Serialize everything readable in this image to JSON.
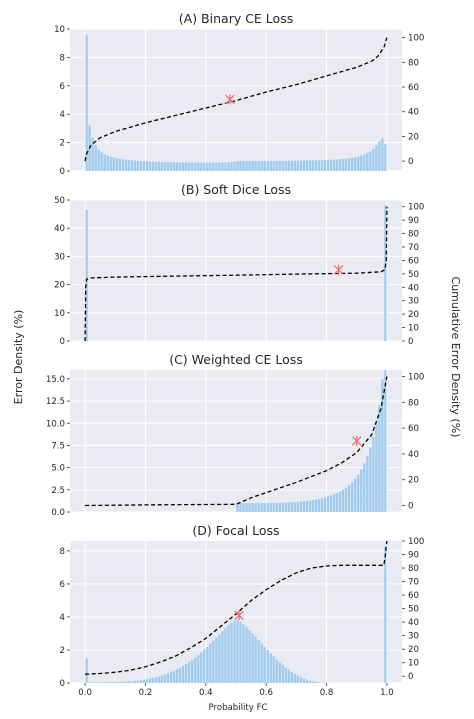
{
  "figure": {
    "ylabel_left": "Error Density (%)",
    "ylabel_right": "Cumulative Error Density (%)",
    "xlabel": "Probability FC",
    "x_ticks": [
      "0.0",
      "0.2",
      "0.4",
      "0.6",
      "0.8",
      "1.0"
    ]
  },
  "colors": {
    "bar": "#9fcbee",
    "line": "#000000",
    "marker": "#f06b6b",
    "plot_bg": "#eaeaf2",
    "grid": "#ffffff"
  },
  "chart_data": [
    {
      "type": "bar",
      "title": "(A) Binary CE Loss",
      "xlabel": "",
      "ylabel": "Error Density (%)",
      "xlim": [
        -0.05,
        1.05
      ],
      "ylim": [
        0,
        10
      ],
      "y_ticks": [
        0,
        2,
        4,
        6,
        8,
        10
      ],
      "y2lim": [
        -8,
        107
      ],
      "y2_ticks": [
        0,
        20,
        40,
        60,
        80,
        100
      ],
      "bins": 100,
      "series": [
        {
          "kind": "bar",
          "values": [
            9.6,
            3.2,
            2.35,
            1.8,
            1.5,
            1.3,
            1.18,
            1.08,
            1.0,
            0.95,
            0.9,
            0.86,
            0.83,
            0.8,
            0.78,
            0.76,
            0.74,
            0.72,
            0.7,
            0.69,
            0.68,
            0.67,
            0.66,
            0.65,
            0.64,
            0.63,
            0.63,
            0.62,
            0.62,
            0.61,
            0.61,
            0.6,
            0.6,
            0.6,
            0.6,
            0.59,
            0.59,
            0.59,
            0.59,
            0.59,
            0.59,
            0.59,
            0.59,
            0.6,
            0.6,
            0.6,
            0.6,
            0.61,
            0.62,
            0.65,
            0.7,
            0.72,
            0.71,
            0.71,
            0.71,
            0.71,
            0.71,
            0.71,
            0.71,
            0.71,
            0.71,
            0.71,
            0.71,
            0.72,
            0.72,
            0.72,
            0.72,
            0.72,
            0.73,
            0.73,
            0.73,
            0.73,
            0.74,
            0.74,
            0.74,
            0.75,
            0.75,
            0.76,
            0.76,
            0.77,
            0.78,
            0.79,
            0.8,
            0.81,
            0.83,
            0.85,
            0.87,
            0.9,
            0.93,
            0.97,
            1.02,
            1.08,
            1.15,
            1.25,
            1.38,
            1.55,
            1.8,
            2.1,
            2.3,
            1.9
          ]
        },
        {
          "kind": "cumulative",
          "x": [
            0.0,
            0.005,
            0.02,
            0.05,
            0.1,
            0.2,
            0.3,
            0.4,
            0.5,
            0.6,
            0.7,
            0.8,
            0.9,
            0.95,
            0.97,
            0.99,
            1.0
          ],
          "y": [
            0,
            6,
            13,
            19,
            24,
            31,
            37,
            43,
            49,
            56,
            62,
            69,
            76,
            81,
            85,
            92,
            100
          ]
        }
      ],
      "marker": {
        "x": 0.48,
        "y": 50
      }
    },
    {
      "type": "bar",
      "title": "(B) Soft Dice Loss",
      "xlabel": "",
      "ylabel": "Error Density (%)",
      "xlim": [
        -0.05,
        1.05
      ],
      "ylim": [
        0,
        50
      ],
      "y_ticks": [
        0,
        10,
        20,
        30,
        40,
        50
      ],
      "y2lim": [
        0,
        105
      ],
      "y2_ticks": [
        0,
        10,
        20,
        30,
        40,
        50,
        60,
        70,
        80,
        90,
        100
      ],
      "bins": 100,
      "series": [
        {
          "kind": "bar",
          "values": [
            46.5,
            0,
            0,
            0,
            0,
            0,
            0,
            0,
            0,
            0,
            0,
            0,
            0,
            0,
            0,
            0,
            0,
            0,
            0,
            0,
            0,
            0,
            0,
            0,
            0,
            0,
            0,
            0,
            0,
            0,
            0,
            0,
            0,
            0,
            0,
            0,
            0,
            0,
            0,
            0,
            0,
            0,
            0,
            0,
            0,
            0,
            0,
            0,
            0,
            0,
            0,
            0,
            0,
            0,
            0,
            0,
            0,
            0,
            0,
            0,
            0,
            0,
            0,
            0,
            0,
            0,
            0,
            0,
            0,
            0,
            0,
            0,
            0,
            0,
            0,
            0,
            0,
            0,
            0,
            0,
            0,
            0,
            0,
            0,
            0,
            0,
            0,
            0,
            0,
            0,
            0,
            0,
            0,
            0,
            0,
            0,
            0,
            0,
            0,
            48
          ]
        },
        {
          "kind": "cumulative",
          "x": [
            0.0,
            0.002,
            0.005,
            0.02,
            0.1,
            0.3,
            0.5,
            0.7,
            0.9,
            0.98,
            0.993,
            0.998,
            1.0
          ],
          "y": [
            0,
            40,
            46,
            47,
            47.6,
            48.3,
            49,
            49.8,
            50.5,
            51.5,
            53,
            60,
            100
          ]
        }
      ],
      "marker": {
        "x": 0.84,
        "y": 53
      }
    },
    {
      "type": "bar",
      "title": "(C) Weighted CE Loss",
      "xlabel": "",
      "ylabel": "Error Density (%)",
      "xlim": [
        -0.05,
        1.05
      ],
      "ylim": [
        0,
        16
      ],
      "y_ticks": [
        0.0,
        2.5,
        5.0,
        7.5,
        10.0,
        12.5,
        15.0
      ],
      "y2lim": [
        -5,
        105
      ],
      "y2_ticks": [
        0,
        20,
        40,
        60,
        80,
        100
      ],
      "bins": 100,
      "series": [
        {
          "kind": "bar",
          "values": [
            0,
            0,
            0,
            0,
            0,
            0,
            0,
            0,
            0,
            0,
            0,
            0,
            0,
            0,
            0,
            0,
            0,
            0,
            0,
            0,
            0,
            0,
            0,
            0,
            0,
            0,
            0,
            0,
            0,
            0,
            0,
            0,
            0,
            0,
            0,
            0,
            0,
            0,
            0,
            0,
            0,
            0,
            0,
            0,
            0,
            0,
            0,
            0,
            0,
            0,
            1.0,
            1.0,
            1.0,
            1.0,
            1.0,
            1.0,
            1.0,
            1.0,
            1.0,
            1.01,
            1.01,
            1.02,
            1.02,
            1.03,
            1.04,
            1.05,
            1.06,
            1.08,
            1.1,
            1.12,
            1.15,
            1.18,
            1.21,
            1.25,
            1.3,
            1.35,
            1.41,
            1.48,
            1.56,
            1.65,
            1.75,
            1.87,
            2.0,
            2.15,
            2.32,
            2.52,
            2.75,
            3.02,
            3.35,
            3.75,
            4.2,
            4.8,
            5.5,
            6.3,
            7.3,
            8.5,
            10.0,
            12.0,
            15.0,
            16.0
          ]
        },
        {
          "kind": "cumulative",
          "x": [
            0.0,
            0.2,
            0.4,
            0.5,
            0.55,
            0.6,
            0.7,
            0.8,
            0.85,
            0.9,
            0.95,
            0.98,
            1.0
          ],
          "y": [
            0,
            0.5,
            0.8,
            1,
            6,
            10,
            18,
            27,
            33,
            41,
            55,
            75,
            100
          ]
        }
      ],
      "marker": {
        "x": 0.9,
        "y": 50
      }
    },
    {
      "type": "bar",
      "title": "(D) Focal Loss",
      "xlabel": "Probability FC",
      "ylabel": "Error Density (%)",
      "xlim": [
        -0.05,
        1.05
      ],
      "ylim": [
        0,
        8.6
      ],
      "y_ticks": [
        0,
        2,
        4,
        6,
        8
      ],
      "y2lim": [
        -5,
        100
      ],
      "y2_ticks": [
        0,
        10,
        20,
        30,
        40,
        50,
        60,
        70,
        80,
        90,
        100
      ],
      "bins": 100,
      "series": [
        {
          "kind": "bar",
          "values": [
            1.5,
            0.05,
            0.05,
            0.05,
            0.05,
            0.05,
            0.05,
            0.05,
            0.05,
            0.05,
            0.06,
            0.07,
            0.08,
            0.09,
            0.1,
            0.11,
            0.13,
            0.15,
            0.17,
            0.2,
            0.23,
            0.27,
            0.31,
            0.35,
            0.4,
            0.46,
            0.52,
            0.59,
            0.67,
            0.75,
            0.84,
            0.94,
            1.05,
            1.16,
            1.28,
            1.41,
            1.55,
            1.7,
            1.86,
            2.03,
            2.2,
            2.38,
            2.57,
            2.76,
            2.95,
            3.14,
            3.32,
            3.49,
            3.64,
            3.76,
            3.8,
            3.7,
            3.55,
            3.38,
            3.2,
            3.0,
            2.8,
            2.6,
            2.4,
            2.2,
            2.0,
            1.8,
            1.6,
            1.42,
            1.25,
            1.09,
            0.94,
            0.8,
            0.67,
            0.55,
            0.44,
            0.35,
            0.27,
            0.2,
            0.14,
            0.1,
            0.07,
            0.04,
            0.02,
            0.01,
            0,
            0,
            0,
            0,
            0,
            0,
            0,
            0,
            0,
            0,
            0,
            0,
            0,
            0,
            0,
            0,
            0,
            0,
            0,
            8.3
          ]
        },
        {
          "kind": "cumulative",
          "x": [
            0.0,
            0.05,
            0.1,
            0.15,
            0.2,
            0.25,
            0.3,
            0.35,
            0.4,
            0.45,
            0.5,
            0.55,
            0.6,
            0.65,
            0.7,
            0.75,
            0.8,
            0.85,
            0.9,
            0.95,
            0.99,
            0.995,
            1.0
          ],
          "y": [
            1.5,
            2,
            3,
            4.5,
            7,
            10.5,
            15,
            21,
            28,
            37,
            46,
            56,
            64,
            71,
            76.5,
            80,
            81.5,
            82,
            82,
            82,
            82,
            90,
            100
          ]
        }
      ],
      "marker": {
        "x": 0.51,
        "y": 45
      }
    }
  ]
}
